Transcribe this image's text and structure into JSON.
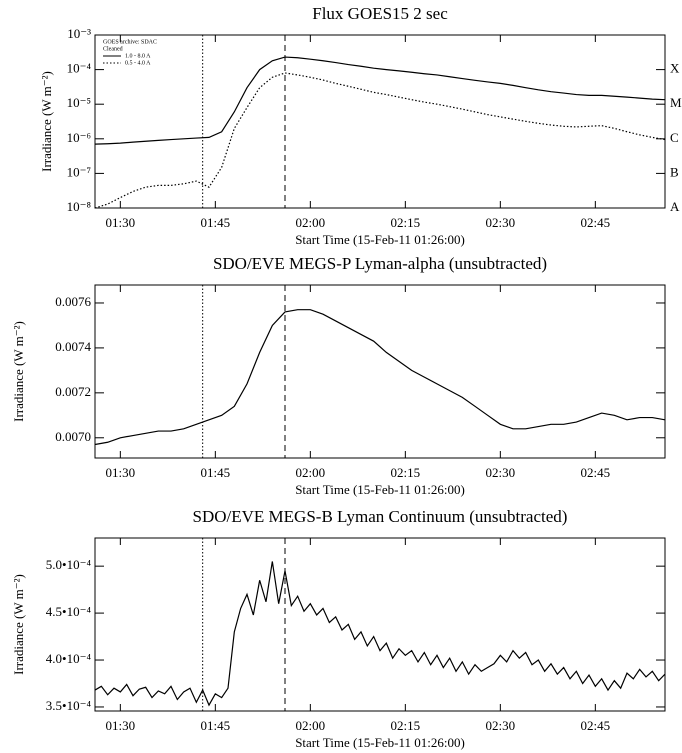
{
  "chart_data": [
    {
      "type": "line",
      "title": "Flux  GOES15 2 sec",
      "xlabel": "Start Time (15-Feb-11 01:26:00)",
      "ylabel": "Irradiance (W m⁻²)",
      "log_y": true,
      "ylim": [
        1e-08,
        0.001
      ],
      "yticks": [
        {
          "value": 1e-08,
          "label": "10⁻⁸"
        },
        {
          "value": 1e-07,
          "label": "10⁻⁷"
        },
        {
          "value": 1e-06,
          "label": "10⁻⁶"
        },
        {
          "value": 1e-05,
          "label": "10⁻⁵"
        },
        {
          "value": 0.0001,
          "label": "10⁻⁴"
        },
        {
          "value": 0.001,
          "label": "10⁻³"
        }
      ],
      "y2lim": [
        1e-08,
        0.001
      ],
      "y2ticks": [
        {
          "value": 1e-08,
          "label": "A"
        },
        {
          "value": 1e-07,
          "label": "B"
        },
        {
          "value": 1e-06,
          "label": "C"
        },
        {
          "value": 1e-05,
          "label": "M"
        },
        {
          "value": 0.0001,
          "label": "X"
        }
      ],
      "xlim": [
        "01:26",
        "02:56"
      ],
      "xticks": [
        "01:30",
        "01:45",
        "02:00",
        "02:15",
        "02:30",
        "02:45"
      ],
      "vlines": [
        {
          "x": "01:43",
          "style": "dotted"
        },
        {
          "x": "01:56",
          "style": "dashed"
        }
      ],
      "legend": "top-left",
      "legend_title": [
        "GOES archive: SDAC",
        "Cleaned"
      ],
      "x": [
        "01:26",
        "01:28",
        "01:30",
        "01:32",
        "01:34",
        "01:36",
        "01:38",
        "01:40",
        "01:42",
        "01:44",
        "01:46",
        "01:48",
        "01:50",
        "01:52",
        "01:54",
        "01:56",
        "01:58",
        "02:00",
        "02:02",
        "02:04",
        "02:06",
        "02:08",
        "02:10",
        "02:12",
        "02:14",
        "02:16",
        "02:18",
        "02:20",
        "02:22",
        "02:24",
        "02:26",
        "02:28",
        "02:30",
        "02:32",
        "02:34",
        "02:36",
        "02:38",
        "02:40",
        "02:42",
        "02:44",
        "02:46",
        "02:48",
        "02:50",
        "02:52",
        "02:54",
        "02:56"
      ],
      "series": [
        {
          "name": "1.0 - 8.0 A",
          "color": "#000000",
          "dash": "solid",
          "values": [
            7e-07,
            7.2e-07,
            7.5e-07,
            8e-07,
            8.5e-07,
            9e-07,
            9.5e-07,
            1e-06,
            1.05e-06,
            1.1e-06,
            1.6e-06,
            6e-06,
            3e-05,
            0.0001,
            0.00018,
            0.00023,
            0.00022,
            0.0002,
            0.00018,
            0.00016,
            0.00014,
            0.000125,
            0.00011,
            0.0001,
            9.2e-05,
            8.4e-05,
            7.6e-05,
            7e-05,
            6.2e-05,
            5.5e-05,
            4.9e-05,
            4.4e-05,
            4e-05,
            3.5e-05,
            3e-05,
            2.6e-05,
            2.3e-05,
            2.1e-05,
            1.9e-05,
            1.8e-05,
            1.8e-05,
            1.7e-05,
            1.6e-05,
            1.5e-05,
            1.4e-05,
            1.35e-05
          ]
        },
        {
          "name": "0.5 - 4.0 A",
          "color": "#000000",
          "dash": "dotted",
          "values": [
            1e-08,
            1.3e-08,
            2e-08,
            3e-08,
            4e-08,
            4.5e-08,
            4.5e-08,
            5e-08,
            6e-08,
            4e-08,
            1.5e-07,
            2e-06,
            8e-06,
            3e-05,
            6e-05,
            8e-05,
            7e-05,
            6e-05,
            5e-05,
            4e-05,
            3.3e-05,
            2.7e-05,
            2.2e-05,
            1.9e-05,
            1.6e-05,
            1.35e-05,
            1.15e-05,
            1e-05,
            8.5e-06,
            7.2e-06,
            6e-06,
            5e-06,
            4.3e-06,
            3.7e-06,
            3.2e-06,
            2.8e-06,
            2.5e-06,
            2.3e-06,
            2.2e-06,
            2.3e-06,
            2.4e-06,
            2e-06,
            1.6e-06,
            1.3e-06,
            1.1e-06,
            9.5e-07
          ]
        }
      ]
    },
    {
      "type": "line",
      "title": "SDO/EVE MEGS-P Lyman-alpha (unsubtracted)",
      "xlabel": "Start Time (15-Feb-11 01:26:00)",
      "ylabel": "Irradiance (W m⁻²)",
      "ylim": [
        0.00691,
        0.00768
      ],
      "yticks": [
        {
          "value": 0.007,
          "label": "0.0070"
        },
        {
          "value": 0.0072,
          "label": "0.0072"
        },
        {
          "value": 0.0074,
          "label": "0.0074"
        },
        {
          "value": 0.0076,
          "label": "0.0076"
        }
      ],
      "xlim": [
        "01:26",
        "02:56"
      ],
      "xticks": [
        "01:30",
        "01:45",
        "02:00",
        "02:15",
        "02:30",
        "02:45"
      ],
      "vlines": [
        {
          "x": "01:43",
          "style": "dotted"
        },
        {
          "x": "01:56",
          "style": "dashed"
        }
      ],
      "x": [
        "01:26",
        "01:28",
        "01:30",
        "01:32",
        "01:34",
        "01:36",
        "01:38",
        "01:40",
        "01:42",
        "01:44",
        "01:46",
        "01:48",
        "01:50",
        "01:52",
        "01:54",
        "01:56",
        "01:58",
        "02:00",
        "02:02",
        "02:04",
        "02:06",
        "02:08",
        "02:10",
        "02:12",
        "02:14",
        "02:16",
        "02:18",
        "02:20",
        "02:22",
        "02:24",
        "02:26",
        "02:28",
        "02:30",
        "02:32",
        "02:34",
        "02:36",
        "02:38",
        "02:40",
        "02:42",
        "02:44",
        "02:46",
        "02:48",
        "02:50",
        "02:52",
        "02:54",
        "02:56"
      ],
      "color": "#000000",
      "values": [
        0.00697,
        0.00698,
        0.007,
        0.00701,
        0.00702,
        0.00703,
        0.00703,
        0.00704,
        0.00706,
        0.00708,
        0.0071,
        0.00714,
        0.00724,
        0.00738,
        0.0075,
        0.00756,
        0.00757,
        0.00757,
        0.00755,
        0.00752,
        0.00749,
        0.00746,
        0.00743,
        0.00738,
        0.00734,
        0.0073,
        0.00727,
        0.00724,
        0.00721,
        0.00718,
        0.00714,
        0.0071,
        0.00706,
        0.00704,
        0.00704,
        0.00705,
        0.00706,
        0.00706,
        0.00707,
        0.00709,
        0.00711,
        0.0071,
        0.00708,
        0.00709,
        0.00709,
        0.00708
      ]
    },
    {
      "type": "line",
      "title": "SDO/EVE MEGS-B Lyman Continuum (unsubtracted)",
      "xlabel": "Start Time (15-Feb-11 01:26:00)",
      "ylabel": "Irradiance (W m⁻²)",
      "ylim": [
        0.0003457,
        0.00053
      ],
      "yticks": [
        {
          "value": 0.00035,
          "label": "3.5•10⁻⁴"
        },
        {
          "value": 0.0004,
          "label": "4.0•10⁻⁴"
        },
        {
          "value": 0.00045,
          "label": "4.5•10⁻⁴"
        },
        {
          "value": 0.0005,
          "label": "5.0•10⁻⁴"
        }
      ],
      "xlim": [
        "01:26",
        "02:56"
      ],
      "xticks": [
        "01:30",
        "01:45",
        "02:00",
        "02:15",
        "02:30",
        "02:45"
      ],
      "vlines": [
        {
          "x": "01:43",
          "style": "dotted"
        },
        {
          "x": "01:56",
          "style": "dashed"
        }
      ],
      "x": [
        "01:26",
        "01:27",
        "01:28",
        "01:29",
        "01:30",
        "01:31",
        "01:32",
        "01:33",
        "01:34",
        "01:35",
        "01:36",
        "01:37",
        "01:38",
        "01:39",
        "01:40",
        "01:41",
        "01:42",
        "01:43",
        "01:44",
        "01:45",
        "01:46",
        "01:47",
        "01:48",
        "01:49",
        "01:50",
        "01:51",
        "01:52",
        "01:53",
        "01:54",
        "01:55",
        "01:56",
        "01:57",
        "01:58",
        "01:59",
        "02:00",
        "02:01",
        "02:02",
        "02:03",
        "02:04",
        "02:05",
        "02:06",
        "02:07",
        "02:08",
        "02:09",
        "02:10",
        "02:11",
        "02:12",
        "02:13",
        "02:14",
        "02:15",
        "02:16",
        "02:17",
        "02:18",
        "02:19",
        "02:20",
        "02:21",
        "02:22",
        "02:23",
        "02:24",
        "02:25",
        "02:26",
        "02:27",
        "02:28",
        "02:29",
        "02:30",
        "02:31",
        "02:32",
        "02:33",
        "02:34",
        "02:35",
        "02:36",
        "02:37",
        "02:38",
        "02:39",
        "02:40",
        "02:41",
        "02:42",
        "02:43",
        "02:44",
        "02:45",
        "02:46",
        "02:47",
        "02:48",
        "02:49",
        "02:50",
        "02:51",
        "02:52",
        "02:53",
        "02:54",
        "02:55",
        "02:56"
      ],
      "color": "#000000",
      "values": [
        0.000368,
        0.000372,
        0.000363,
        0.00037,
        0.000366,
        0.000374,
        0.000362,
        0.000369,
        0.000371,
        0.00036,
        0.000367,
        0.000364,
        0.000372,
        0.000358,
        0.000366,
        0.00037,
        0.000355,
        0.000368,
        0.000352,
        0.000364,
        0.00036,
        0.00037,
        0.00043,
        0.000455,
        0.00047,
        0.000448,
        0.000485,
        0.000462,
        0.000505,
        0.00046,
        0.000495,
        0.000458,
        0.000468,
        0.000452,
        0.00046,
        0.000448,
        0.000455,
        0.00044,
        0.000446,
        0.000432,
        0.000438,
        0.000422,
        0.00043,
        0.000415,
        0.000425,
        0.00041,
        0.000418,
        0.000402,
        0.000412,
        0.000405,
        0.00041,
        0.000398,
        0.000408,
        0.000395,
        0.000405,
        0.000392,
        0.000402,
        0.000388,
        0.000398,
        0.000385,
        0.000395,
        0.000388,
        0.000392,
        0.000396,
        0.000405,
        0.000398,
        0.00041,
        0.000402,
        0.000408,
        0.000395,
        0.0004,
        0.000388,
        0.000396,
        0.000385,
        0.000392,
        0.00038,
        0.000388,
        0.000375,
        0.000384,
        0.000372,
        0.00038,
        0.000368,
        0.000378,
        0.00037,
        0.000386,
        0.00038,
        0.00039,
        0.000382,
        0.000388,
        0.000378,
        0.000385
      ]
    }
  ]
}
